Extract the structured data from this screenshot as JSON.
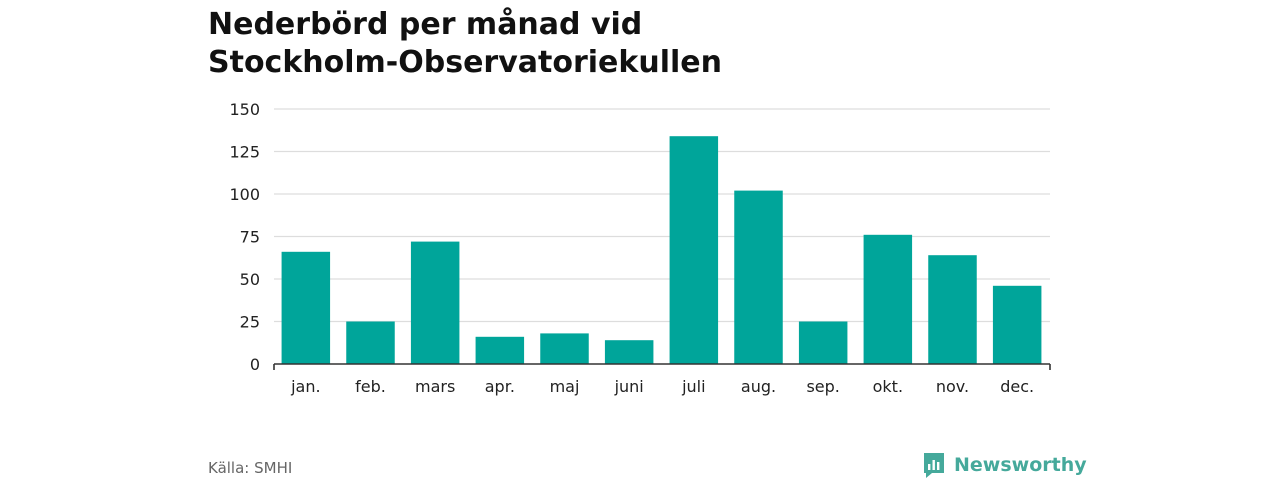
{
  "title_lines": [
    "Nederbörd per månad vid",
    "Stockholm-Observatoriekullen"
  ],
  "source": "Källa: SMHI",
  "brand": "Newsworthy",
  "colors": {
    "bar": "#00a59a",
    "grid": "#dddddd",
    "axis": "#333333",
    "brand": "#45a99b"
  },
  "chart_data": {
    "type": "bar",
    "categories": [
      "jan.",
      "feb.",
      "mars",
      "apr.",
      "maj",
      "juni",
      "juli",
      "aug.",
      "sep.",
      "okt.",
      "nov.",
      "dec."
    ],
    "values": [
      66,
      25,
      72,
      16,
      18,
      14,
      134,
      102,
      25,
      76,
      64,
      46
    ],
    "yticks": [
      0,
      25,
      50,
      75,
      100,
      125,
      150
    ],
    "ylim": [
      0,
      150
    ],
    "grid": true
  }
}
